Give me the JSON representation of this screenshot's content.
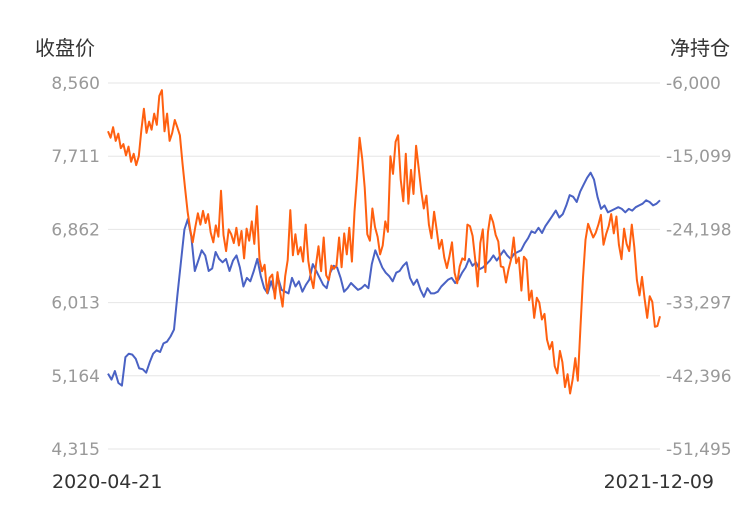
{
  "chart_data": {
    "type": "line",
    "left_axis_title": "收盘价",
    "right_axis_title": "净持仓",
    "x_start_label": "2020-04-21",
    "x_end_label": "2021-12-09",
    "left_ticks": [
      "8,560",
      "7,711",
      "6,862",
      "6,013",
      "5,164",
      "4,315"
    ],
    "right_ticks": [
      "-6,000",
      "-15,099",
      "-24,198",
      "-33,297",
      "-42,396",
      "-51,495"
    ],
    "ylim_left": [
      4315,
      8560
    ],
    "ylim_right": [
      -51495,
      -6000
    ],
    "grid": true,
    "series": [
      {
        "axis": "left",
        "color": "#4a62c4",
        "values": [
          5190,
          5120,
          5220,
          5080,
          5050,
          5380,
          5420,
          5410,
          5360,
          5250,
          5240,
          5200,
          5320,
          5420,
          5460,
          5440,
          5540,
          5560,
          5620,
          5700,
          6100,
          6480,
          6860,
          6980,
          6780,
          6380,
          6500,
          6620,
          6560,
          6380,
          6410,
          6600,
          6520,
          6480,
          6520,
          6380,
          6500,
          6560,
          6420,
          6200,
          6300,
          6260,
          6380,
          6520,
          6320,
          6180,
          6120,
          6260,
          6120,
          6300,
          6160,
          6140,
          6120,
          6300,
          6200,
          6260,
          6140,
          6220,
          6280,
          6460,
          6380,
          6300,
          6220,
          6180,
          6360,
          6440,
          6420,
          6300,
          6140,
          6180,
          6240,
          6200,
          6160,
          6180,
          6220,
          6180,
          6460,
          6620,
          6520,
          6420,
          6360,
          6320,
          6260,
          6360,
          6380,
          6440,
          6480,
          6300,
          6220,
          6280,
          6160,
          6080,
          6180,
          6120,
          6120,
          6140,
          6200,
          6240,
          6280,
          6300,
          6240,
          6280,
          6360,
          6420,
          6520,
          6440,
          6480,
          6400,
          6420,
          6460,
          6500,
          6560,
          6500,
          6560,
          6620,
          6560,
          6520,
          6580,
          6600,
          6620,
          6700,
          6760,
          6840,
          6820,
          6880,
          6820,
          6900,
          6960,
          7020,
          7080,
          7000,
          7040,
          7140,
          7260,
          7240,
          7180,
          7300,
          7380,
          7460,
          7520,
          7440,
          7240,
          7100,
          7140,
          7060,
          7080,
          7100,
          7120,
          7100,
          7060,
          7100,
          7080,
          7120,
          7140,
          7160,
          7200,
          7180,
          7140,
          7160,
          7200
        ]
      },
      {
        "axis": "right",
        "color": "#ff6010",
        "values": [
          -12000,
          -12800,
          -11500,
          -13200,
          -12300,
          -14100,
          -13600,
          -15000,
          -13900,
          -15800,
          -14800,
          -16200,
          -15100,
          -11800,
          -9200,
          -12200,
          -10800,
          -11800,
          -9800,
          -11200,
          -7600,
          -6900,
          -12000,
          -9800,
          -13200,
          -12200,
          -10600,
          -11500,
          -12500,
          -16000,
          -19000,
          -22000,
          -24200,
          -25800,
          -23900,
          -22200,
          -23600,
          -21900,
          -23400,
          -22300,
          -24600,
          -25800,
          -23700,
          -25100,
          -19400,
          -24900,
          -26900,
          -24200,
          -24800,
          -25900,
          -24000,
          -26200,
          -24400,
          -27800,
          -24100,
          -25600,
          -23200,
          -26000,
          -21300,
          -27900,
          -29400,
          -28600,
          -32100,
          -30200,
          -29800,
          -32800,
          -29500,
          -31900,
          -33800,
          -30000,
          -28000,
          -21800,
          -27400,
          -24800,
          -27300,
          -26400,
          -28200,
          -23600,
          -28100,
          -30100,
          -31500,
          -28600,
          -26300,
          -29400,
          -25200,
          -29900,
          -30500,
          -28700,
          -29100,
          -28700,
          -25200,
          -28900,
          -24700,
          -27300,
          -24000,
          -28200,
          -22000,
          -17800,
          -12800,
          -15400,
          -19000,
          -24800,
          -25600,
          -21600,
          -23900,
          -25100,
          -27300,
          -26200,
          -23200,
          -24500,
          -15100,
          -17300,
          -13300,
          -12500,
          -18000,
          -20700,
          -14800,
          -21000,
          -16800,
          -19800,
          -13800,
          -16600,
          -19400,
          -21600,
          -20000,
          -23600,
          -25300,
          -22000,
          -24200,
          -26600,
          -25500,
          -27700,
          -29000,
          -27500,
          -25800,
          -29600,
          -30900,
          -28800,
          -27800,
          -28000,
          -23600,
          -23800,
          -25000,
          -27800,
          -31300,
          -25900,
          -24200,
          -29500,
          -24500,
          -22400,
          -23300,
          -24900,
          -25700,
          -28800,
          -28900,
          -30800,
          -29200,
          -27900,
          -25200,
          -28400,
          -27700,
          -31800,
          -27600,
          -28000,
          -33000,
          -31800,
          -35200,
          -32700,
          -33300,
          -35400,
          -34700,
          -37900,
          -39100,
          -38200,
          -41200,
          -42100,
          -39300,
          -40700,
          -43800,
          -42200,
          -44600,
          -42800,
          -40200,
          -43000,
          -36500,
          -30200,
          -25500,
          -23500,
          -24400,
          -25200,
          -24600,
          -23600,
          -22400,
          -26100,
          -24800,
          -23800,
          -22300,
          -24700,
          -22600,
          -26100,
          -27900,
          -24100,
          -26000,
          -26900,
          -23600,
          -26400,
          -30500,
          -32400,
          -30100,
          -32800,
          -35200,
          -32500,
          -33200,
          -36300,
          -36200,
          -35000
        ]
      }
    ]
  }
}
